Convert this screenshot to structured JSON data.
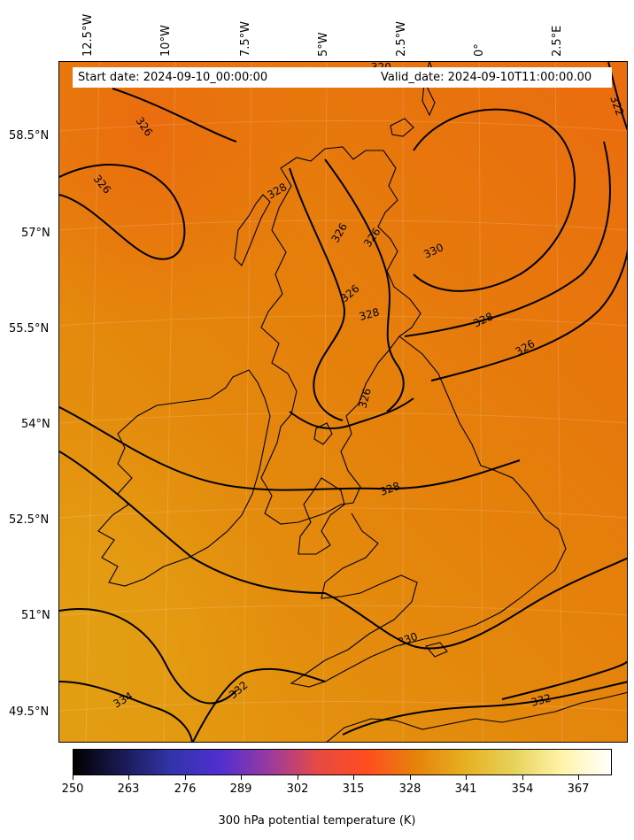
{
  "header": {
    "start_date": "Start date: 2024-09-10_00:00:00",
    "valid_date": "Valid_date: 2024-09-10T11:00:00.00"
  },
  "longitude_labels": [
    "12.5°W",
    "10°W",
    "7.5°W",
    "5°W",
    "2.5°W",
    "0°",
    "2.5°E"
  ],
  "latitude_labels": [
    "58.5°N",
    "57°N",
    "55.5°N",
    "54°N",
    "52.5°N",
    "51°N",
    "49.5°N"
  ],
  "contour_labels": [
    "320",
    "322",
    "326",
    "326",
    "328",
    "326",
    "326",
    "330",
    "328",
    "326",
    "328",
    "326",
    "326",
    "328",
    "330",
    "332",
    "334",
    "332"
  ],
  "colorbar": {
    "title": "300 hPa potential temperature (K)",
    "ticks": [
      "250",
      "263",
      "276",
      "289",
      "302",
      "315",
      "328",
      "341",
      "354",
      "367"
    ],
    "colormap": "CMRmap",
    "colors": [
      "#000000",
      "#1a1a55",
      "#3333aa",
      "#4f2fd0",
      "#9a3aa0",
      "#e64a44",
      "#ff4d1f",
      "#e6820a",
      "#e6b020",
      "#e6d25a",
      "#fff4a8",
      "#ffffff"
    ]
  },
  "map": {
    "field_colors": {
      "cool": "#ea6d0e",
      "mid": "#e4830a",
      "warm": "#e3990f"
    },
    "contour_color": "#000000"
  }
}
